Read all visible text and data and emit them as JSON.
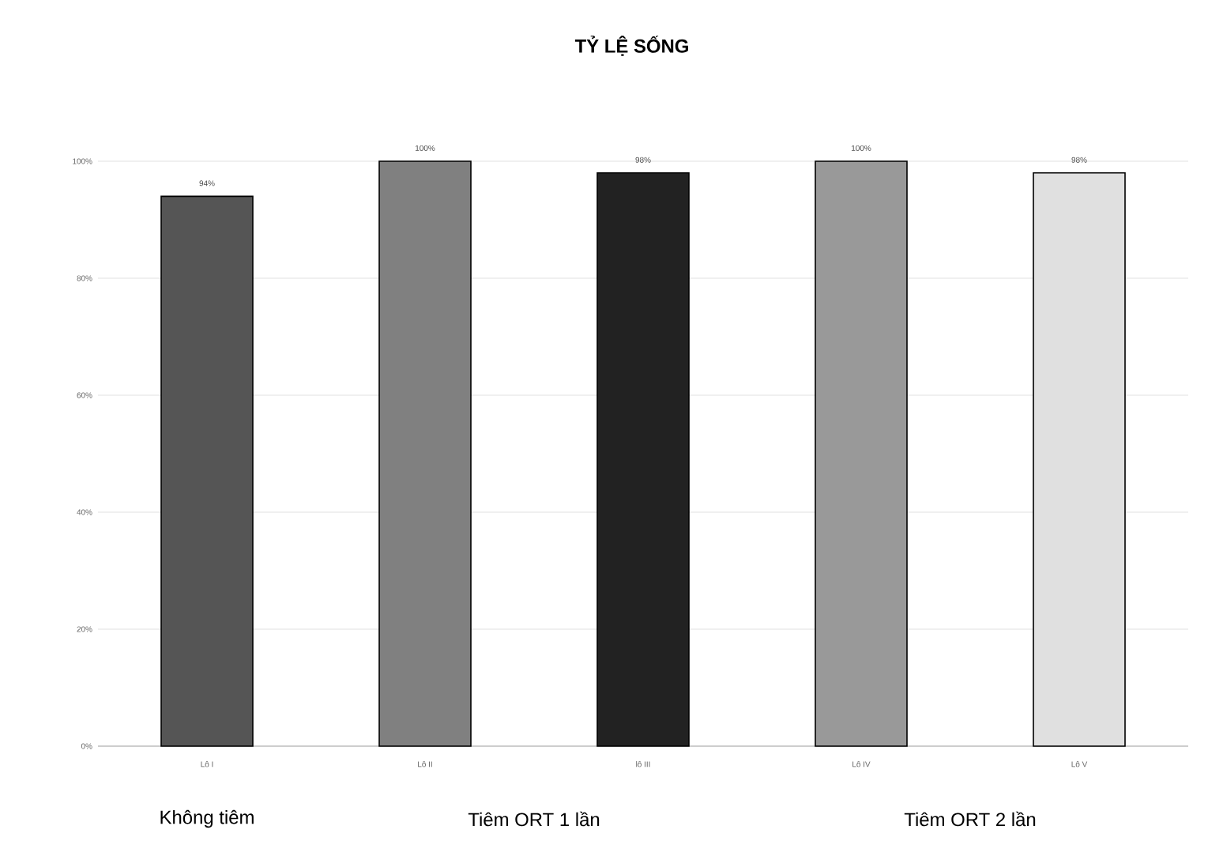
{
  "chart_data": {
    "type": "bar",
    "title": "TỶ LỆ SỐNG",
    "categories": [
      "Lô I",
      "Lô II",
      "lô III",
      "Lô IV",
      "Lô V"
    ],
    "values": [
      94,
      100,
      98,
      100,
      98
    ],
    "value_labels": [
      "94%",
      "100%",
      "98%",
      "100%",
      "98%"
    ],
    "colors": [
      "#555555",
      "#808080",
      "#222222",
      "#999999",
      "#e0e0e0"
    ],
    "ylim": [
      0,
      100
    ],
    "yticks": [
      {
        "value": 0,
        "label": "0%"
      },
      {
        "value": 20,
        "label": "20%"
      },
      {
        "value": 40,
        "label": "40%"
      },
      {
        "value": 60,
        "label": "60%"
      },
      {
        "value": 80,
        "label": "80%"
      },
      {
        "value": 100,
        "label": "100%"
      }
    ],
    "grid": "y",
    "annotations": [
      "Không tiêm",
      "Tiêm ORT 1 lần",
      "Tiêm ORT 2 lần"
    ]
  }
}
